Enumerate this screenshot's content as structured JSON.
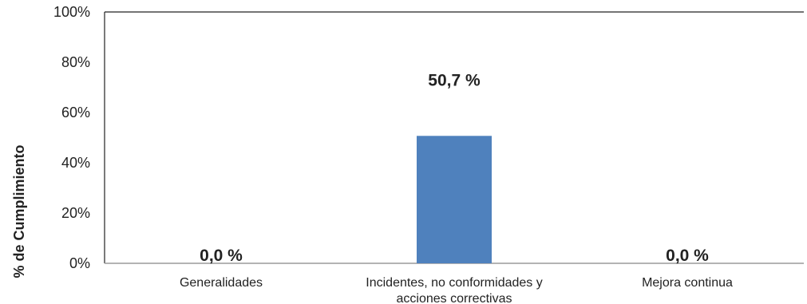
{
  "chart_data": {
    "type": "bar",
    "title": "",
    "xlabel": "",
    "ylabel": "% de Cumplimiento",
    "ylim": [
      0,
      100
    ],
    "yticks": [
      "0%",
      "20%",
      "40%",
      "60%",
      "80%",
      "100%"
    ],
    "ytick_values": [
      0,
      20,
      40,
      60,
      80,
      100
    ],
    "grid": false,
    "legend": "none",
    "categories": [
      [
        "Generalidades"
      ],
      [
        "Incidentes, no conformidades y",
        "acciones correctivas"
      ],
      [
        "Mejora continua"
      ]
    ],
    "values": [
      0.0,
      50.7,
      0.0
    ],
    "data_labels": [
      "0,0 %",
      "50,7 %",
      "0,0 %"
    ],
    "colors": {
      "bar": "#4F81BD",
      "axis": "#222222",
      "text": "#222222"
    }
  }
}
